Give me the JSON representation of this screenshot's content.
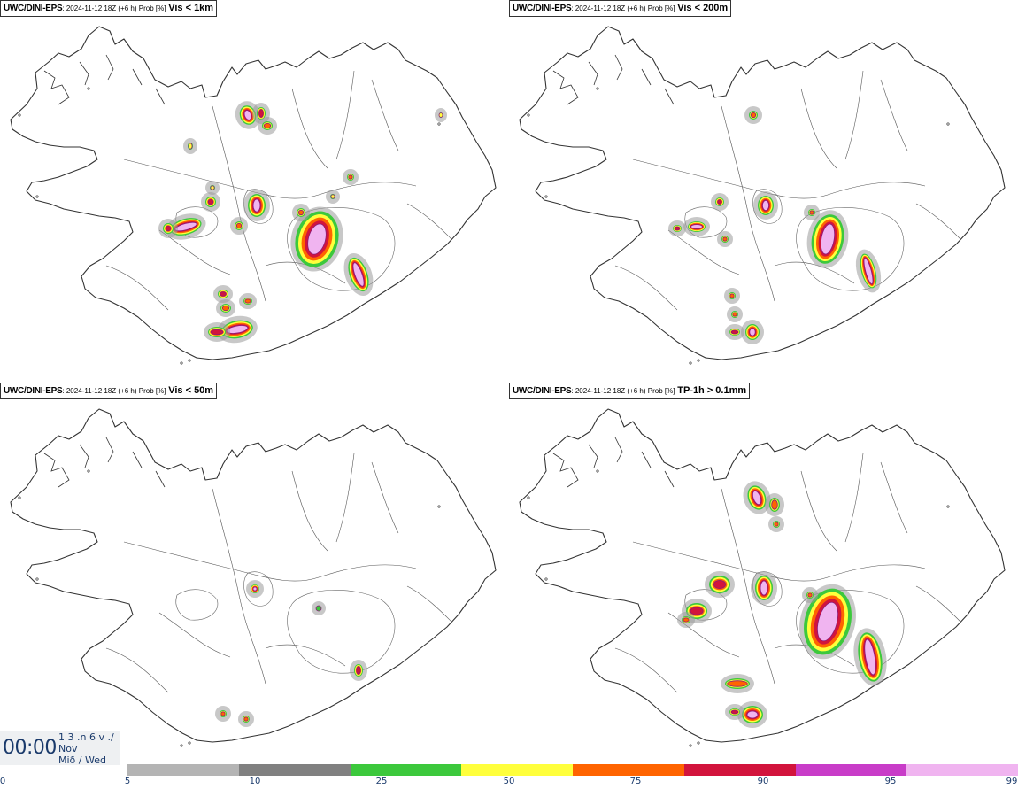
{
  "panels": [
    {
      "model": "UWC/DINI-EPS",
      "meta": ": 2024-11-12 18Z (+6 h) Prob [%]",
      "param": "Vis < 1km"
    },
    {
      "model": "UWC/DINI-EPS",
      "meta": ": 2024-11-12 18Z (+6 h) Prob [%]",
      "param": "Vis < 200m"
    },
    {
      "model": "UWC/DINI-EPS",
      "meta": ": 2024-11-12 18Z (+6 h) Prob [%]",
      "param": "Vis < 50m"
    },
    {
      "model": "UWC/DINI-EPS",
      "meta": ": 2024-11-12 18Z (+6 h) Prob [%]",
      "param": "TP-1h > 0.1mm"
    }
  ],
  "time": {
    "main": "00:00",
    "line1": "1 3 .n 6 v ./",
    "line2": "Nov",
    "line3": "Mið / Wed"
  },
  "legend": {
    "colors": [
      "#b4b4b4",
      "#808080",
      "#3cc83c",
      "#ffff3c",
      "#ff6400",
      "#d2143c",
      "#c83cc8",
      "#f0b4f0"
    ],
    "ticks": [
      "0",
      "5",
      "10",
      "25",
      "50",
      "75",
      "90",
      "95",
      "99"
    ]
  },
  "map_colors": {
    "coast": "#333333",
    "rivers": "#555555"
  }
}
